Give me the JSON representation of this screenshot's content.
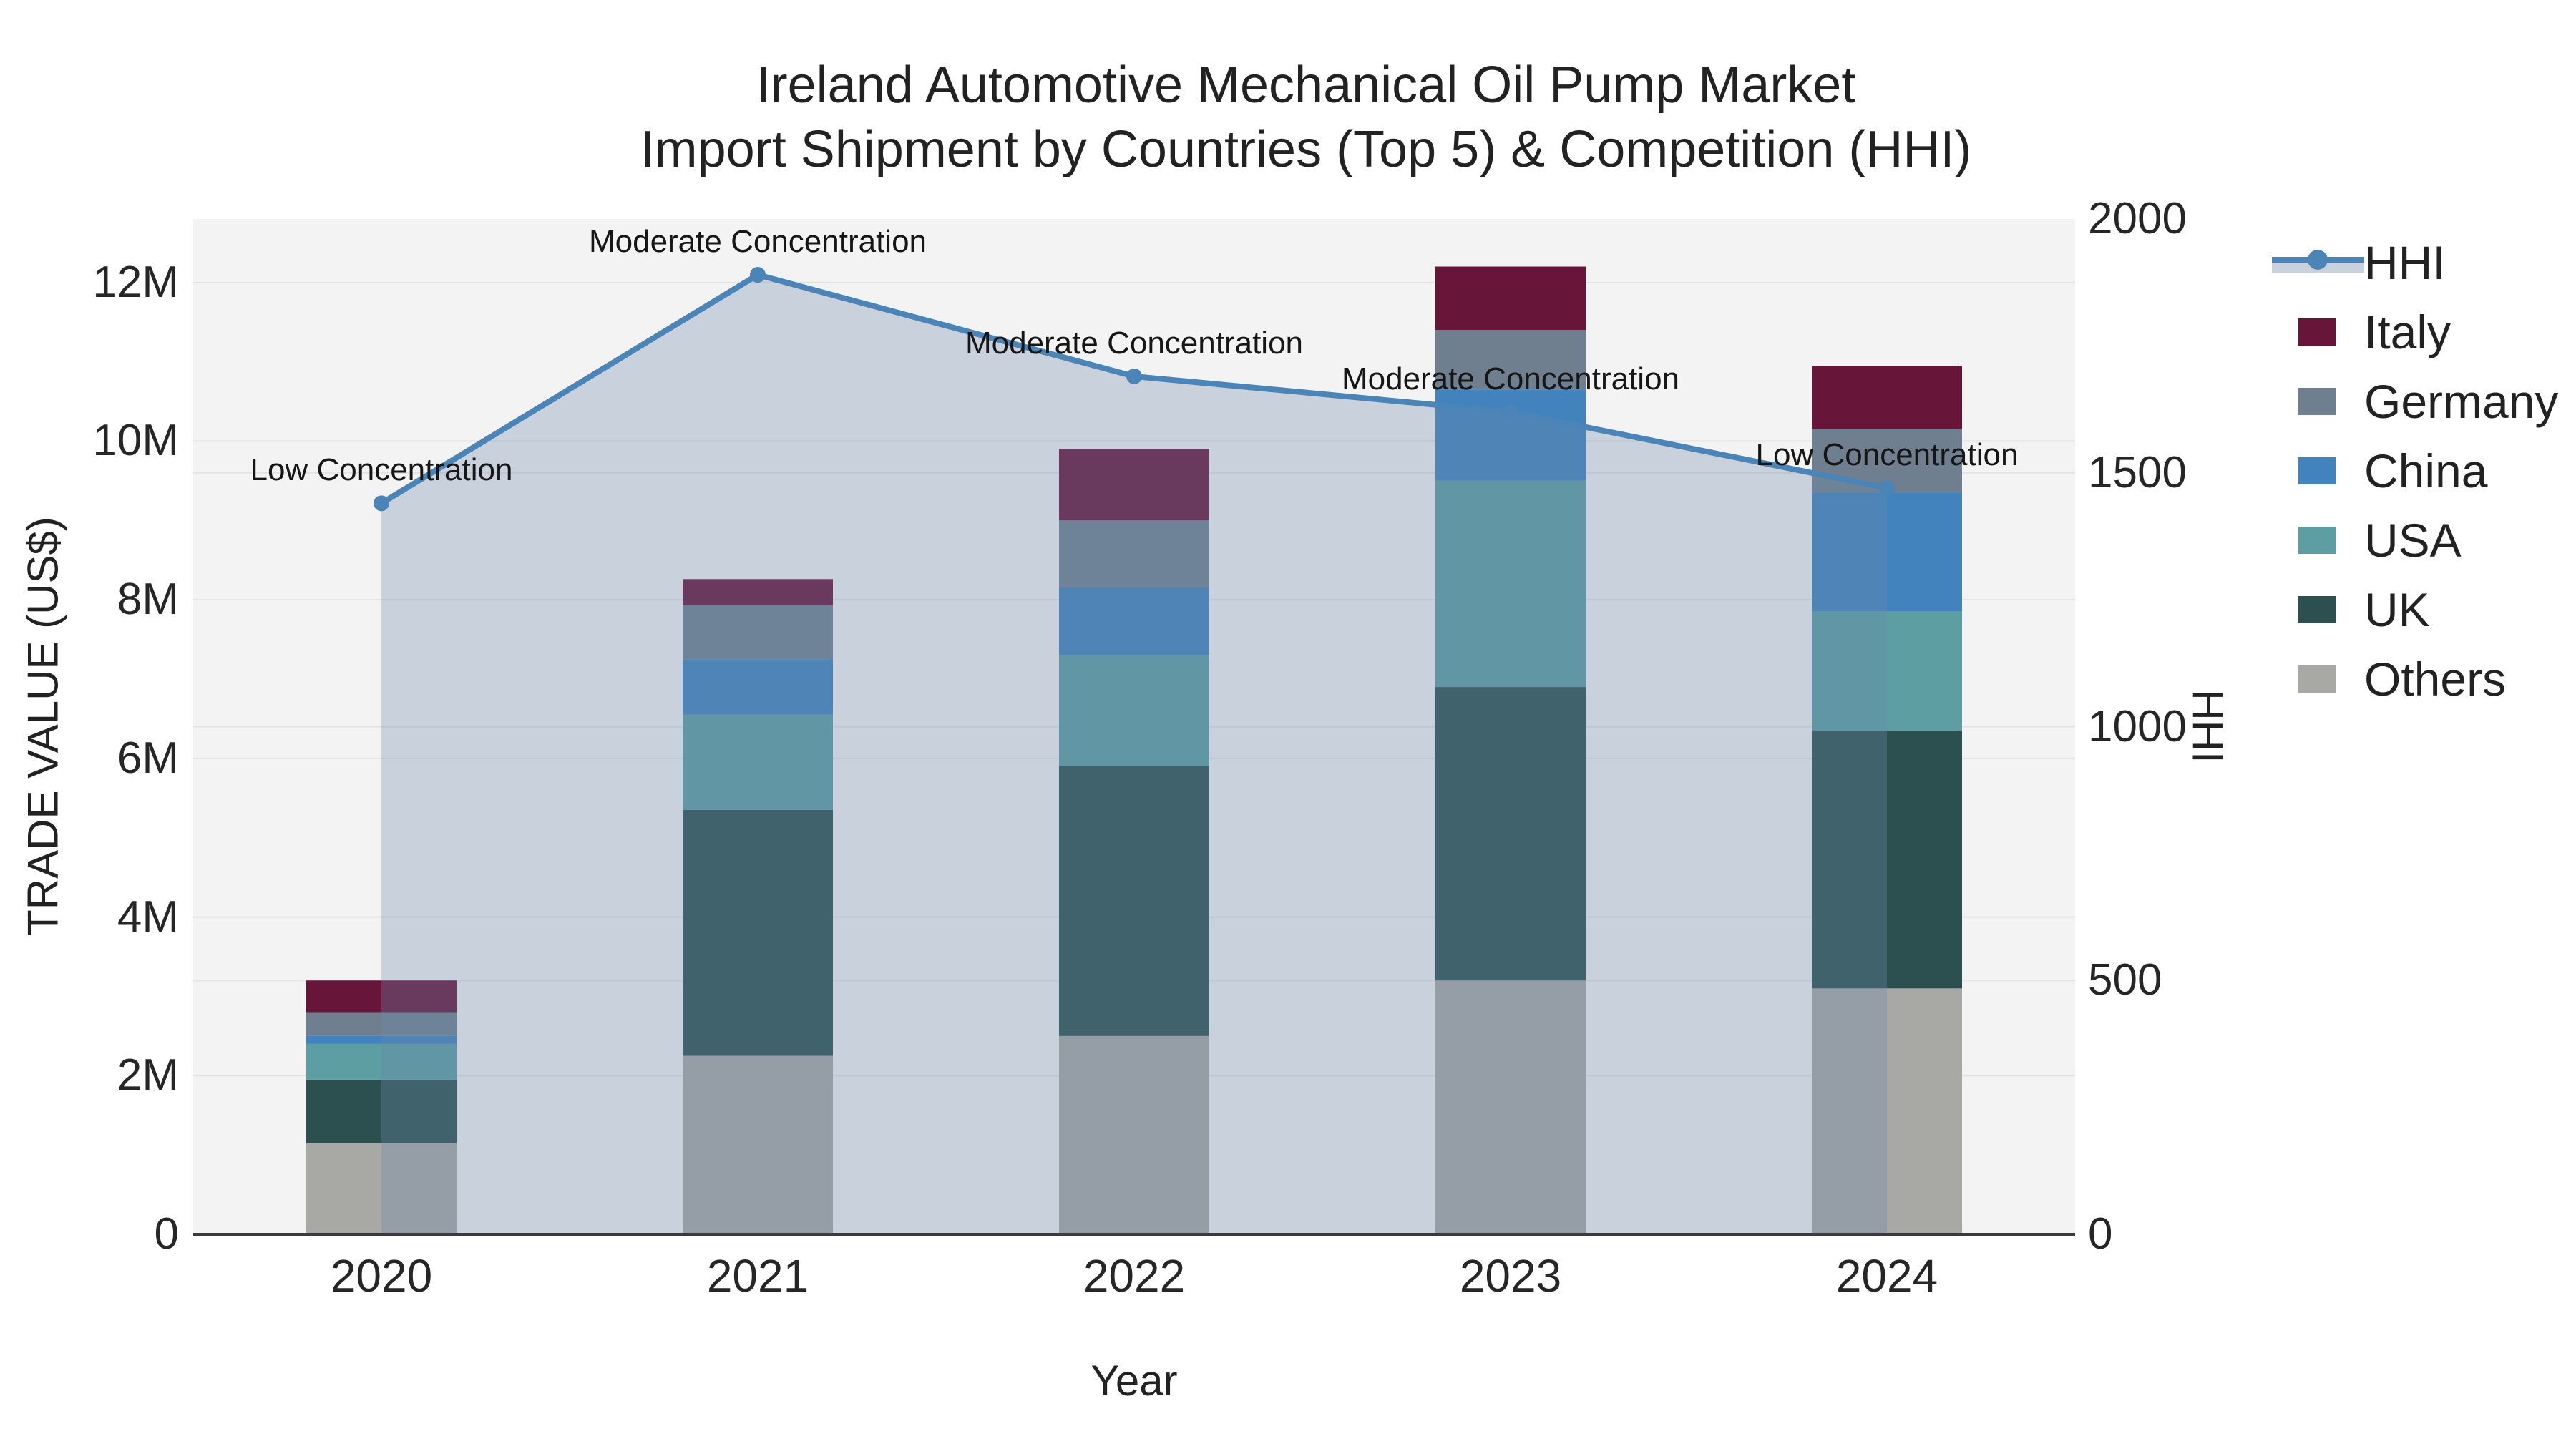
{
  "title": {
    "line1": "Ireland Automotive Mechanical Oil Pump Market",
    "line2": "Import Shipment by Countries (Top 5) & Competition (HHI)"
  },
  "axes": {
    "x_title": "Year",
    "y_left_title": "TRADE VALUE (US$)",
    "y_right_title": "HHI",
    "y_left_tick_labels": [
      "0",
      "2M",
      "4M",
      "6M",
      "8M",
      "10M",
      "12M"
    ],
    "y_left_tick_values_millions": [
      0,
      2,
      4,
      6,
      8,
      10,
      12
    ],
    "y_right_tick_labels": [
      "0",
      "500",
      "1000",
      "1500",
      "2000"
    ],
    "y_right_tick_values": [
      0,
      500,
      1000,
      1500,
      2000
    ]
  },
  "legend": {
    "items": [
      {
        "label": "HHI",
        "type": "line"
      },
      {
        "label": "Italy",
        "type": "square"
      },
      {
        "label": "Germany",
        "type": "square"
      },
      {
        "label": "China",
        "type": "square"
      },
      {
        "label": "USA",
        "type": "square"
      },
      {
        "label": "UK",
        "type": "square"
      },
      {
        "label": "Others",
        "type": "square"
      }
    ]
  },
  "chart_data": {
    "type": "bar+line",
    "title": "Ireland Automotive Mechanical Oil Pump Market — Import Shipment by Countries (Top 5) & Competition (HHI)",
    "xlabel": "Year",
    "ylabel": "TRADE VALUE (US$)",
    "y2label": "HHI",
    "categories": [
      "2020",
      "2021",
      "2022",
      "2023",
      "2024"
    ],
    "units": "millions USD",
    "stacked_bar_series_bottom_to_top": [
      {
        "name": "Others",
        "color": "#a8a9a5",
        "values": [
          1.15,
          2.25,
          2.5,
          3.2,
          3.1
        ]
      },
      {
        "name": "UK",
        "color": "#2c504f",
        "values": [
          0.8,
          3.1,
          3.4,
          3.7,
          3.25
        ]
      },
      {
        "name": "USA",
        "color": "#5c9ea2",
        "values": [
          0.45,
          1.2,
          1.4,
          2.6,
          1.5
        ]
      },
      {
        "name": "China",
        "color": "#4282bd",
        "values": [
          0.1,
          0.7,
          0.85,
          1.15,
          1.5
        ]
      },
      {
        "name": "Germany",
        "color": "#6f7f8f",
        "values": [
          0.3,
          0.68,
          0.85,
          0.75,
          0.8
        ]
      },
      {
        "name": "Italy",
        "color": "#671538",
        "values": [
          0.4,
          0.33,
          0.9,
          0.8,
          0.8
        ]
      }
    ],
    "bar_totals_millions": [
      3.2,
      8.26,
      9.9,
      12.2,
      10.95
    ],
    "line_series": {
      "name": "HHI",
      "color": "#4b84b6",
      "fill_color": "rgba(108,138,172,0.32)",
      "values": [
        1440,
        1890,
        1690,
        1620,
        1470
      ]
    },
    "annotations": [
      {
        "category": "2020",
        "text": "Low Concentration"
      },
      {
        "category": "2021",
        "text": "Moderate Concentration"
      },
      {
        "category": "2022",
        "text": "Moderate Concentration"
      },
      {
        "category": "2023",
        "text": "Moderate Concentration"
      },
      {
        "category": "2024",
        "text": "Low Concentration"
      }
    ],
    "y_left_range_millions": [
      0,
      12.8
    ],
    "y_right_range": [
      0,
      2000
    ],
    "grid": true,
    "legend_position": "right",
    "plot_background": "#f3f3f3",
    "gridline_color": "#e3e3e3",
    "axisline_color": "#3b3b3b"
  }
}
